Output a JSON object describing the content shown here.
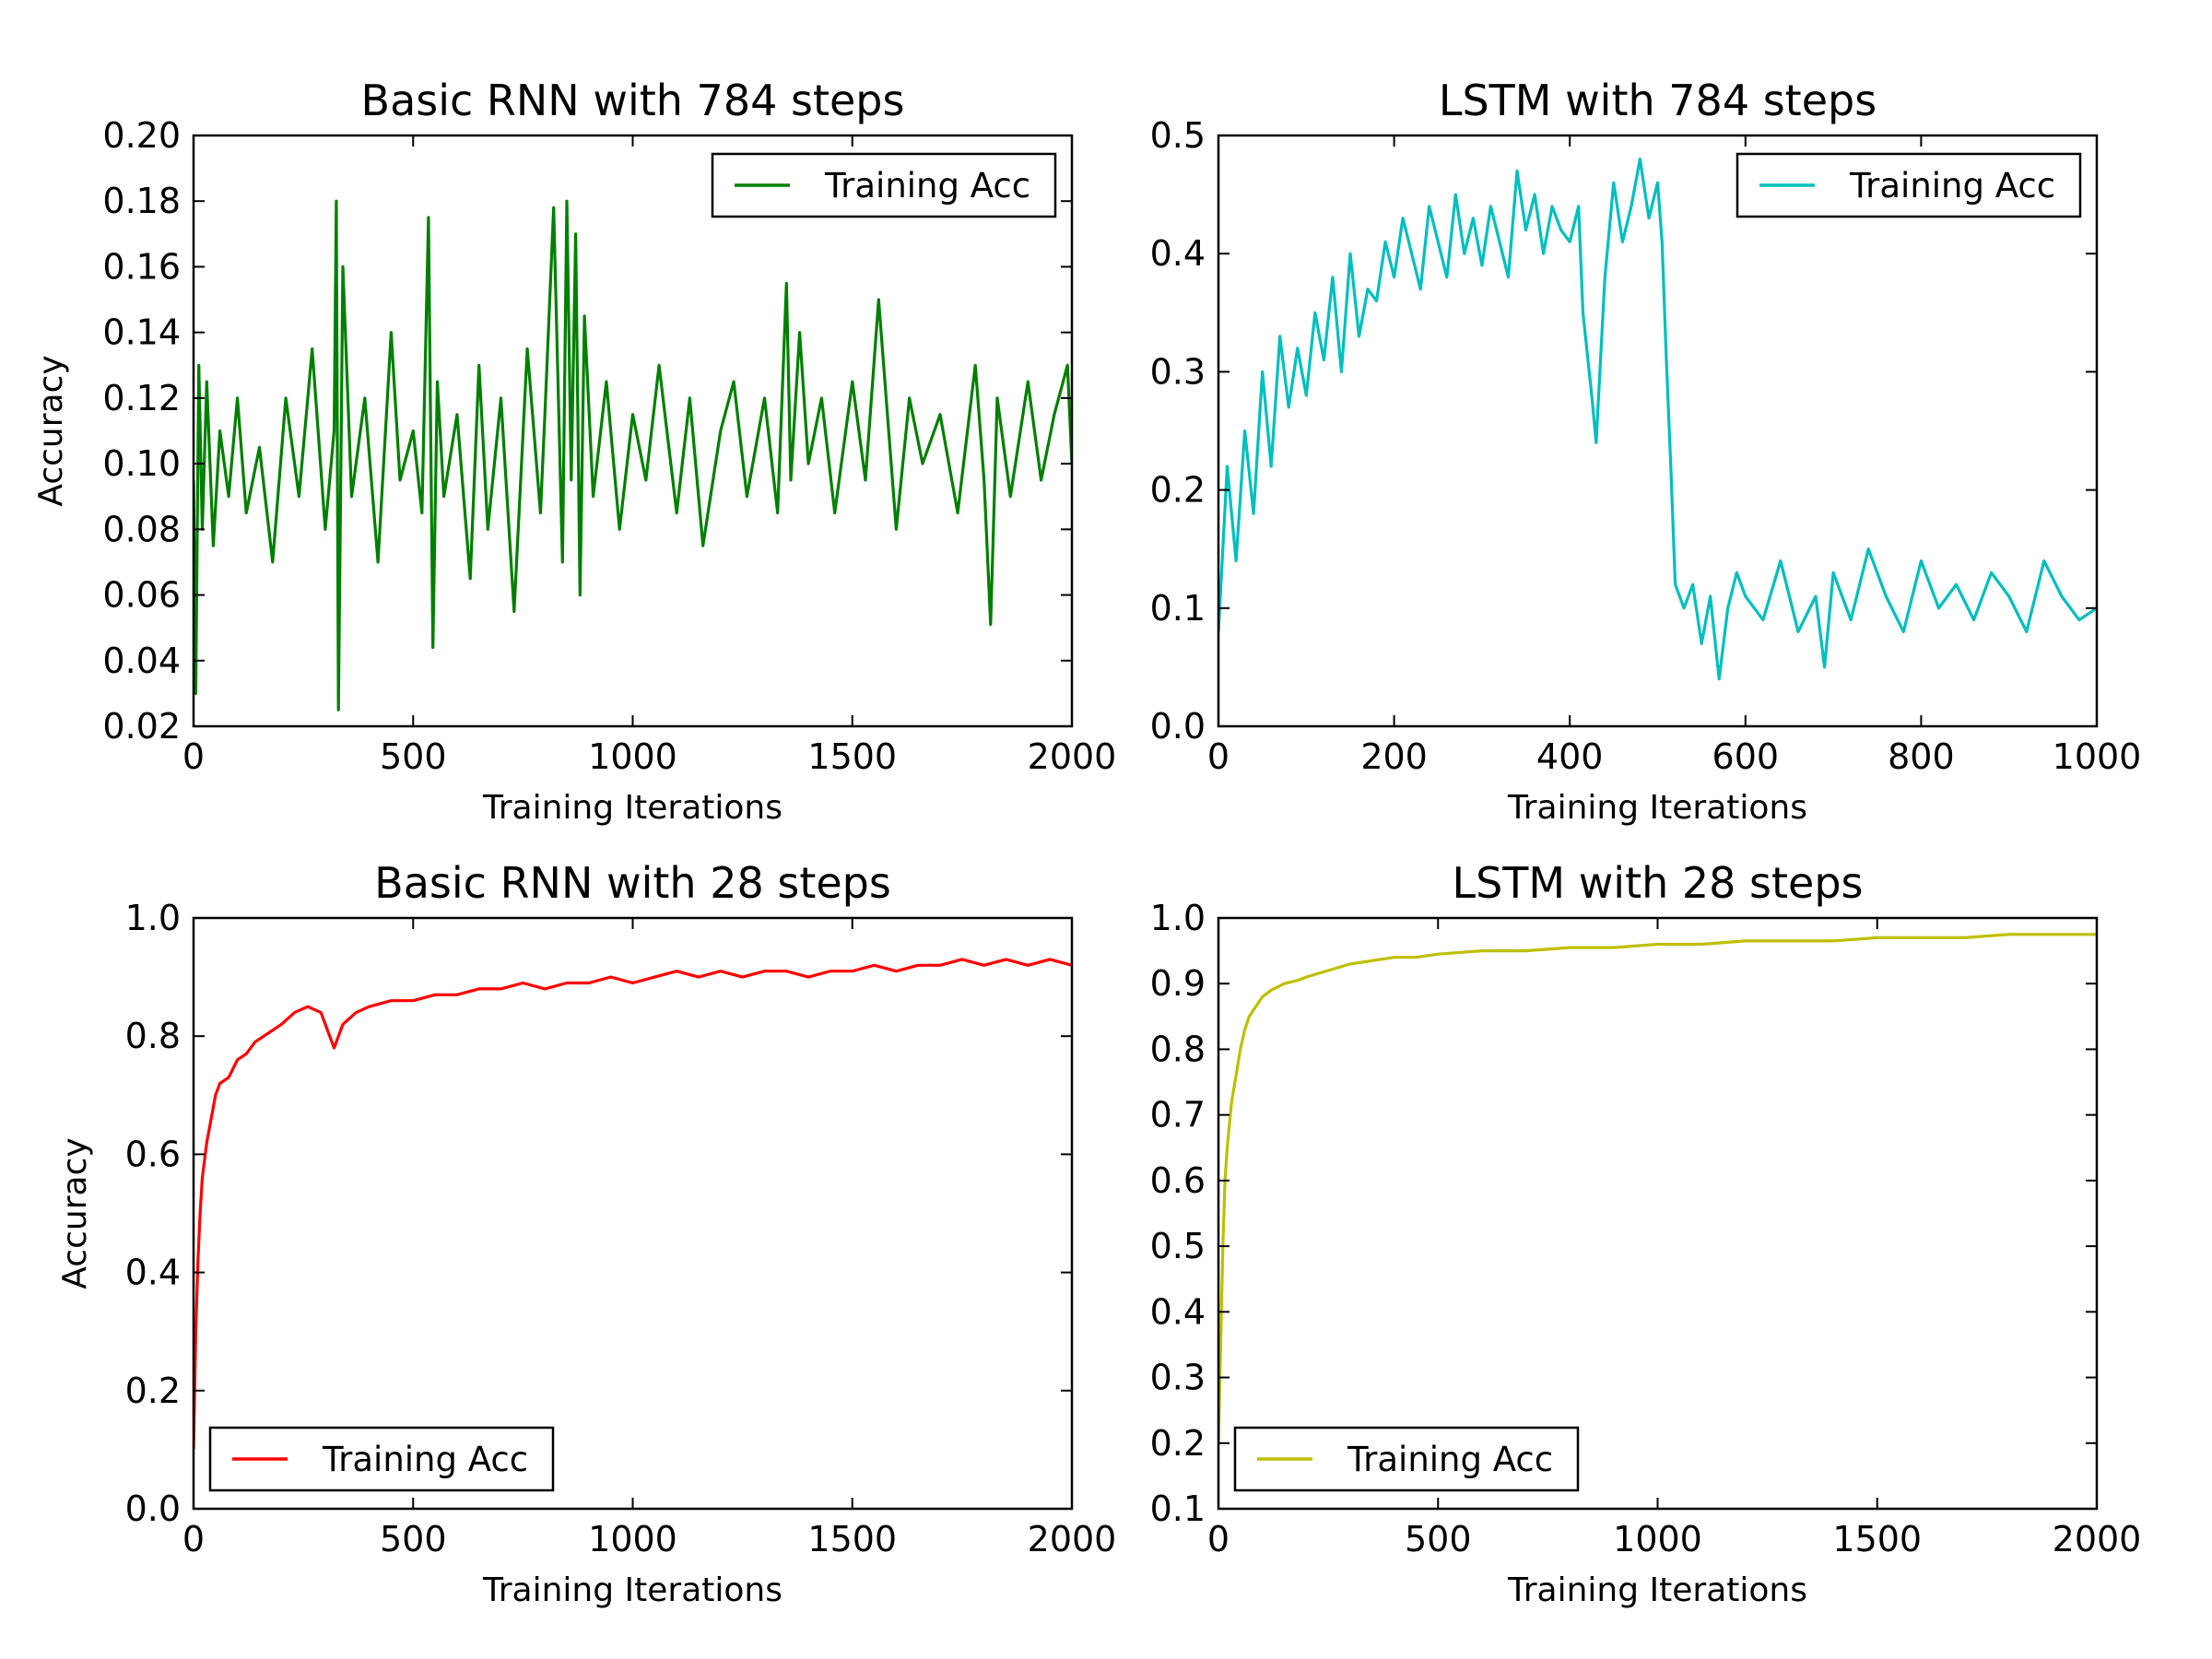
{
  "chart_data": [
    {
      "type": "line",
      "title": "Basic RNN with 784 steps",
      "xlabel": "Training Iterations",
      "ylabel": "Accuracy",
      "xlim": [
        0,
        2000
      ],
      "ylim": [
        0.02,
        0.2
      ],
      "xticks": [
        0,
        500,
        1000,
        1500,
        2000
      ],
      "yticks": [
        0.02,
        0.04,
        0.06,
        0.08,
        0.1,
        0.12,
        0.14,
        0.16,
        0.18,
        0.2
      ],
      "ytick_labels": [
        "0.02",
        "0.04",
        "0.06",
        "0.08",
        "0.10",
        "0.12",
        "0.14",
        "0.16",
        "0.18",
        "0.20"
      ],
      "legend_position": "upper-right",
      "grid": false,
      "series": [
        {
          "name": "Training Acc",
          "color": "#008000",
          "x": [
            0,
            5,
            12,
            20,
            30,
            45,
            60,
            80,
            100,
            120,
            150,
            180,
            210,
            240,
            270,
            300,
            320,
            325,
            330,
            340,
            360,
            390,
            420,
            450,
            470,
            500,
            520,
            535,
            545,
            555,
            570,
            600,
            630,
            650,
            670,
            700,
            730,
            760,
            790,
            800,
            820,
            840,
            850,
            860,
            870,
            880,
            890,
            910,
            940,
            970,
            1000,
            1030,
            1060,
            1100,
            1130,
            1160,
            1200,
            1230,
            1260,
            1300,
            1330,
            1350,
            1360,
            1380,
            1400,
            1430,
            1460,
            1500,
            1530,
            1560,
            1600,
            1630,
            1660,
            1700,
            1740,
            1780,
            1800,
            1815,
            1830,
            1860,
            1900,
            1930,
            1960,
            1990,
            2000
          ],
          "y": [
            0.095,
            0.03,
            0.13,
            0.08,
            0.125,
            0.075,
            0.11,
            0.09,
            0.12,
            0.085,
            0.105,
            0.07,
            0.12,
            0.09,
            0.135,
            0.08,
            0.11,
            0.18,
            0.025,
            0.16,
            0.09,
            0.12,
            0.07,
            0.14,
            0.095,
            0.11,
            0.085,
            0.175,
            0.044,
            0.125,
            0.09,
            0.115,
            0.065,
            0.13,
            0.08,
            0.12,
            0.055,
            0.135,
            0.085,
            0.115,
            0.178,
            0.07,
            0.18,
            0.095,
            0.17,
            0.06,
            0.145,
            0.09,
            0.125,
            0.08,
            0.115,
            0.095,
            0.13,
            0.085,
            0.12,
            0.075,
            0.11,
            0.125,
            0.09,
            0.12,
            0.085,
            0.155,
            0.095,
            0.14,
            0.1,
            0.12,
            0.085,
            0.125,
            0.095,
            0.15,
            0.08,
            0.12,
            0.1,
            0.115,
            0.085,
            0.13,
            0.095,
            0.051,
            0.12,
            0.09,
            0.125,
            0.095,
            0.115,
            0.13,
            0.1
          ]
        }
      ]
    },
    {
      "type": "line",
      "title": "LSTM with 784 steps",
      "xlabel": "Training Iterations",
      "ylabel": "",
      "xlim": [
        0,
        1000
      ],
      "ylim": [
        0.0,
        0.5
      ],
      "xticks": [
        0,
        200,
        400,
        600,
        800,
        1000
      ],
      "yticks": [
        0.0,
        0.1,
        0.2,
        0.3,
        0.4,
        0.5
      ],
      "ytick_labels": [
        "0.0",
        "0.1",
        "0.2",
        "0.3",
        "0.4",
        "0.5"
      ],
      "legend_position": "upper-right",
      "grid": false,
      "series": [
        {
          "name": "Training Acc",
          "color": "#00bfbf",
          "x": [
            0,
            10,
            20,
            30,
            40,
            50,
            60,
            70,
            80,
            90,
            100,
            110,
            120,
            130,
            140,
            150,
            160,
            170,
            180,
            190,
            200,
            210,
            220,
            230,
            240,
            250,
            260,
            270,
            280,
            290,
            300,
            310,
            320,
            330,
            340,
            350,
            360,
            370,
            380,
            390,
            400,
            410,
            415,
            425,
            430,
            440,
            450,
            460,
            470,
            480,
            490,
            500,
            505,
            510,
            515,
            520,
            530,
            540,
            550,
            560,
            570,
            580,
            590,
            600,
            620,
            640,
            660,
            680,
            690,
            700,
            720,
            740,
            760,
            780,
            800,
            820,
            840,
            860,
            880,
            900,
            920,
            940,
            960,
            980,
            1000
          ],
          "y": [
            0.08,
            0.22,
            0.14,
            0.25,
            0.18,
            0.3,
            0.22,
            0.33,
            0.27,
            0.32,
            0.28,
            0.35,
            0.31,
            0.38,
            0.3,
            0.4,
            0.33,
            0.37,
            0.36,
            0.41,
            0.38,
            0.43,
            0.4,
            0.37,
            0.44,
            0.41,
            0.38,
            0.45,
            0.4,
            0.43,
            0.39,
            0.44,
            0.41,
            0.38,
            0.47,
            0.42,
            0.45,
            0.4,
            0.44,
            0.42,
            0.41,
            0.44,
            0.35,
            0.28,
            0.24,
            0.38,
            0.46,
            0.41,
            0.44,
            0.48,
            0.43,
            0.46,
            0.41,
            0.31,
            0.22,
            0.12,
            0.1,
            0.12,
            0.07,
            0.11,
            0.04,
            0.1,
            0.13,
            0.11,
            0.09,
            0.14,
            0.08,
            0.11,
            0.05,
            0.13,
            0.09,
            0.15,
            0.11,
            0.08,
            0.14,
            0.1,
            0.12,
            0.09,
            0.13,
            0.11,
            0.08,
            0.14,
            0.11,
            0.09,
            0.1
          ]
        }
      ]
    },
    {
      "type": "line",
      "title": "Basic RNN with 28 steps",
      "xlabel": "Training Iterations",
      "ylabel": "Accuracy",
      "xlim": [
        0,
        2000
      ],
      "ylim": [
        0.0,
        1.0
      ],
      "xticks": [
        0,
        500,
        1000,
        1500,
        2000
      ],
      "yticks": [
        0.0,
        0.2,
        0.4,
        0.6,
        0.8,
        1.0
      ],
      "ytick_labels": [
        "0.0",
        "0.2",
        "0.4",
        "0.6",
        "0.8",
        "1.0"
      ],
      "legend_position": "lower-left",
      "grid": false,
      "series": [
        {
          "name": "Training Acc",
          "color": "#ff0000",
          "x": [
            0,
            5,
            10,
            15,
            20,
            30,
            40,
            50,
            60,
            80,
            100,
            120,
            140,
            160,
            180,
            200,
            230,
            260,
            290,
            310,
            320,
            340,
            370,
            400,
            450,
            500,
            550,
            600,
            650,
            700,
            750,
            800,
            850,
            900,
            950,
            1000,
            1050,
            1100,
            1150,
            1200,
            1250,
            1300,
            1350,
            1400,
            1450,
            1500,
            1550,
            1600,
            1650,
            1700,
            1750,
            1800,
            1850,
            1900,
            1950,
            2000
          ],
          "y": [
            0.1,
            0.3,
            0.42,
            0.5,
            0.56,
            0.62,
            0.66,
            0.7,
            0.72,
            0.73,
            0.76,
            0.77,
            0.79,
            0.8,
            0.81,
            0.82,
            0.84,
            0.85,
            0.84,
            0.8,
            0.78,
            0.82,
            0.84,
            0.85,
            0.86,
            0.86,
            0.87,
            0.87,
            0.88,
            0.88,
            0.89,
            0.88,
            0.89,
            0.89,
            0.9,
            0.89,
            0.9,
            0.91,
            0.9,
            0.91,
            0.9,
            0.91,
            0.91,
            0.9,
            0.91,
            0.91,
            0.92,
            0.91,
            0.92,
            0.92,
            0.93,
            0.92,
            0.93,
            0.92,
            0.93,
            0.92
          ]
        }
      ]
    },
    {
      "type": "line",
      "title": "LSTM with 28 steps",
      "xlabel": "Training Iterations",
      "ylabel": "",
      "xlim": [
        0,
        2000
      ],
      "ylim": [
        0.1,
        1.0
      ],
      "xticks": [
        0,
        500,
        1000,
        1500,
        2000
      ],
      "yticks": [
        0.1,
        0.2,
        0.3,
        0.4,
        0.5,
        0.6,
        0.7,
        0.8,
        0.9,
        1.0
      ],
      "ytick_labels": [
        "0.1",
        "0.2",
        "0.3",
        "0.4",
        "0.5",
        "0.6",
        "0.7",
        "0.8",
        "0.9",
        "1.0"
      ],
      "legend_position": "lower-left",
      "grid": false,
      "series": [
        {
          "name": "Training Acc",
          "color": "#bfbf00",
          "x": [
            0,
            5,
            10,
            15,
            20,
            30,
            40,
            50,
            60,
            70,
            80,
            100,
            120,
            150,
            180,
            200,
            250,
            300,
            350,
            400,
            450,
            500,
            600,
            700,
            800,
            900,
            1000,
            1100,
            1200,
            1300,
            1400,
            1500,
            1600,
            1700,
            1800,
            1900,
            2000
          ],
          "y": [
            0.2,
            0.35,
            0.5,
            0.6,
            0.65,
            0.72,
            0.76,
            0.8,
            0.83,
            0.85,
            0.86,
            0.88,
            0.89,
            0.9,
            0.905,
            0.91,
            0.92,
            0.93,
            0.935,
            0.94,
            0.94,
            0.945,
            0.95,
            0.95,
            0.955,
            0.955,
            0.96,
            0.96,
            0.965,
            0.965,
            0.965,
            0.97,
            0.97,
            0.97,
            0.975,
            0.975,
            0.975
          ]
        }
      ]
    }
  ]
}
